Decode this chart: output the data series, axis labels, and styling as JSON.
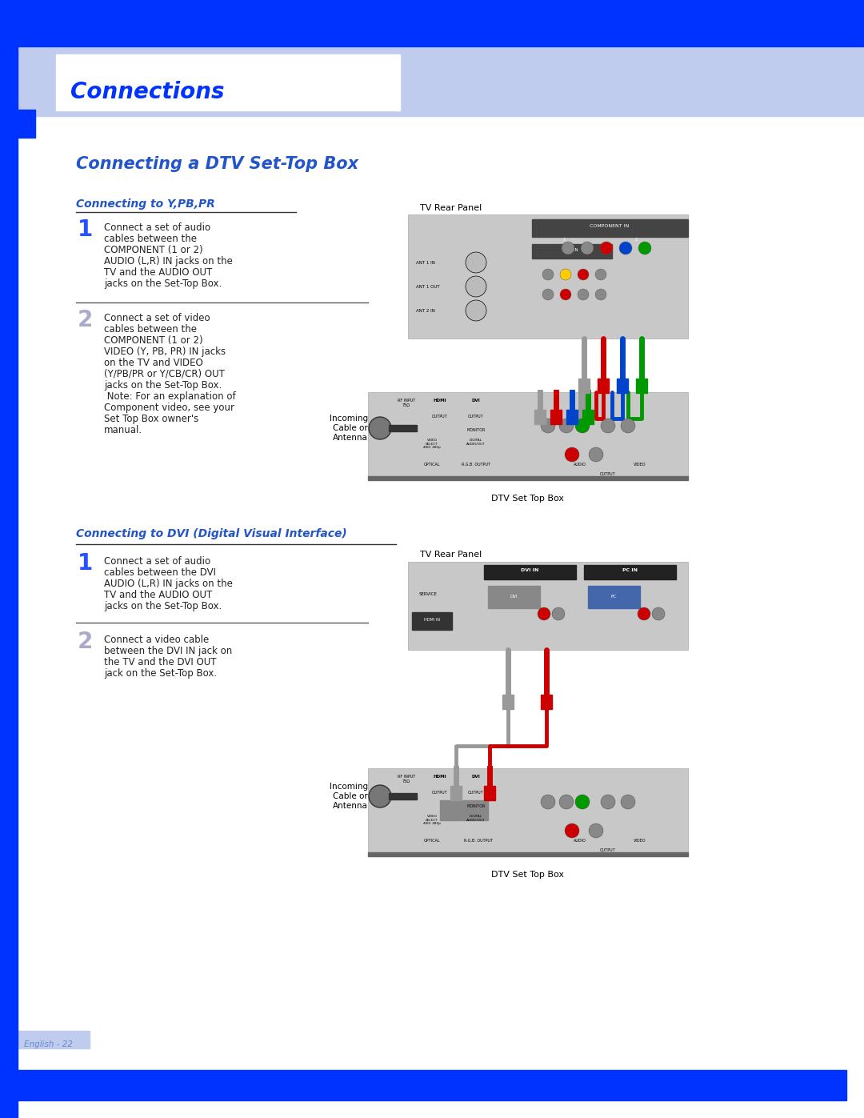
{
  "page_bg": "#ffffff",
  "blue_bar_color": "#0033ff",
  "light_blue_bg": "#c0ccee",
  "header_title": "Connections",
  "header_title_color": "#0033ff",
  "header_title_fontsize": 20,
  "section_title": "Connecting a DTV Set-Top Box",
  "section_title_color": "#2255cc",
  "section_title_fontsize": 15,
  "subsection1_title": "Connecting to Y,PB,PR",
  "subsection2_title": "Connecting to DVI (Digital Visual Interface)",
  "subsection_title_color": "#2255cc",
  "subsection_title_fontsize": 10,
  "body_text_color": "#222222",
  "body_fontsize": 8.5,
  "step1_text_YPbPr": "Connect a set of audio\ncables between the\nCOMPONENT (1 or 2)\nAUDIO (L,R) IN jacks on the\nTV and the AUDIO OUT\njacks on the Set-Top Box.",
  "step2_text_YPbPr": "Connect a set of video\ncables between the\nCOMPONENT (1 or 2)\nVIDEO (Y, PB, PR) IN jacks\non the TV and VIDEO\n(Y/PB/PR or Y/CB/CR) OUT\njacks on the Set-Top Box.\n Note: For an explanation of\nComponent video, see your\nSet Top Box owner's\nmanual.",
  "tv_rear_panel_label": "TV Rear Panel",
  "dtv_set_top_box_label": "DTV Set Top Box",
  "incoming_cable_label": "Incoming\nCable or\nAntenna",
  "step1_text_DVI": "Connect a set of audio\ncables between the DVI\nAUDIO (L,R) IN jacks on the\nTV and the AUDIO OUT\njacks on the Set-Top Box.",
  "step2_text_DVI": "Connect a video cable\nbetween the DVI IN jack on\nthe TV and the DVI OUT\njack on the Set-Top Box.",
  "footer_text": "English - 22",
  "footer_text_color": "#6688cc",
  "gray_panel_color": "#c8c8c8",
  "dark_strip_color": "#444444",
  "wire_gray": "#999999",
  "wire_red": "#cc0000",
  "wire_blue": "#0044cc",
  "wire_green": "#009900",
  "wire_black": "#222222",
  "wire_white": "#dddddd",
  "step_num_color_active": "#0033ff",
  "step_num_color_inactive": "#aaaacc"
}
